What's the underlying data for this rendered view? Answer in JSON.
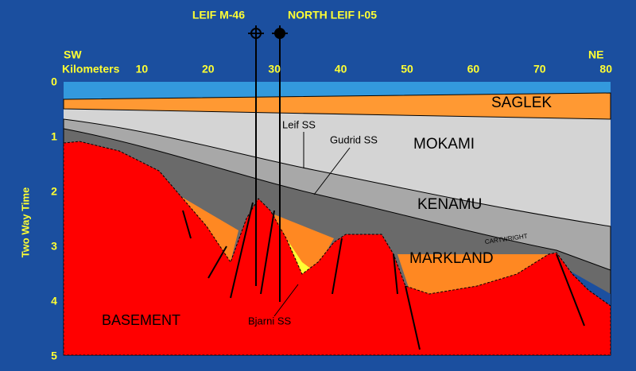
{
  "wells": [
    {
      "label": "LEIF M-46"
    },
    {
      "label": "NORTH LEIF I-05"
    }
  ],
  "axes": {
    "left_end": "SW",
    "right_end": "NE",
    "x_label": "Kilometers",
    "x_ticks": [
      10,
      20,
      30,
      40,
      50,
      60,
      70,
      80
    ],
    "y_label": "Two Way Time",
    "y_ticks": [
      0,
      1,
      2,
      3,
      4,
      5
    ]
  },
  "units": [
    {
      "label": "SAGLEK"
    },
    {
      "label": "MOKAMI"
    },
    {
      "label": "KENAMU"
    },
    {
      "label": "MARKLAND"
    },
    {
      "label": "CARTWRIGHT"
    },
    {
      "label": "BASEMENT"
    }
  ],
  "sands": [
    {
      "label": "Leif SS"
    },
    {
      "label": "Gudrid SS"
    },
    {
      "label": "Bjarni SS"
    }
  ]
}
